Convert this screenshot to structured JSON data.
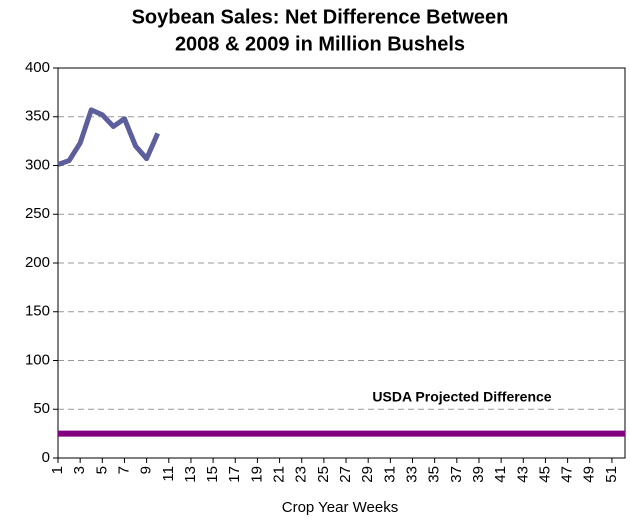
{
  "chart_data": {
    "type": "line",
    "title": [
      "Soybean Sales:  Net Difference Between",
      "2008 & 2009 in Million Bushels"
    ],
    "x_label": "Crop Year Weeks",
    "x": [
      1,
      2,
      3,
      4,
      5,
      6,
      7,
      8,
      9,
      10
    ],
    "series": [
      {
        "color": "#5c5f9c",
        "values": [
          301,
          305,
          323,
          357,
          352,
          340,
          348,
          320,
          307,
          333
        ]
      }
    ],
    "reference_line": {
      "value": 25,
      "label": "USDA Projected  Difference",
      "color": "#800080"
    },
    "xlim": [
      1,
      52
    ],
    "xticks": [
      1,
      3,
      5,
      7,
      9,
      11,
      13,
      15,
      17,
      19,
      21,
      23,
      25,
      27,
      29,
      31,
      33,
      35,
      37,
      39,
      41,
      43,
      45,
      47,
      49,
      51
    ],
    "ylim": [
      0,
      400
    ],
    "yticks": [
      0,
      50,
      100,
      150,
      200,
      250,
      300,
      350,
      400
    ],
    "grid": true
  }
}
